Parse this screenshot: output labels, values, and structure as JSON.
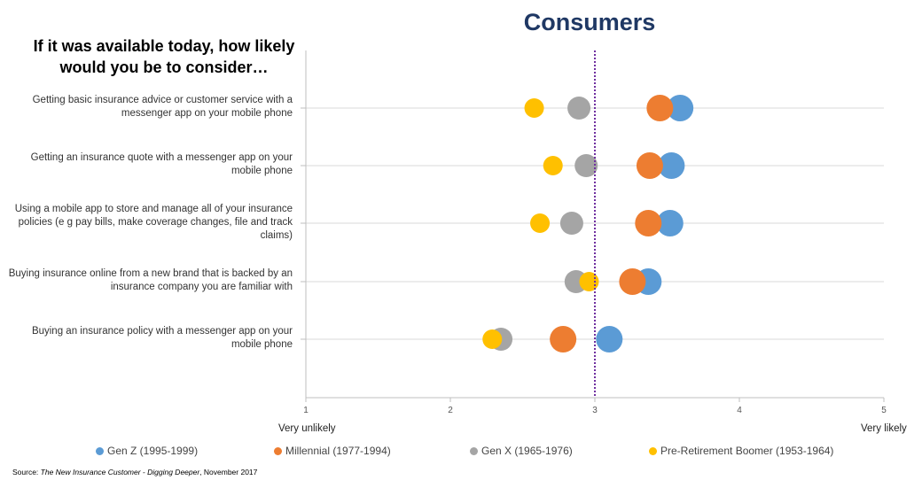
{
  "chart_data": {
    "type": "scatter",
    "title": "Consumers",
    "question": "If it was available today, how likely would you be to consider…",
    "xlim": [
      1,
      5
    ],
    "xticks": [
      "1",
      "2",
      "3",
      "4",
      "5"
    ],
    "x_min_label": "Very unlikely",
    "x_max_label": "Very likely",
    "reference_line_x": 3,
    "categories": [
      "Getting basic insurance advice or customer service with a messenger app on your mobile phone",
      "Getting an insurance quote with a messenger app on your mobile phone",
      "Using a mobile app to store and manage all of your insurance policies (e g  pay bills, make coverage changes, file and track claims)",
      "Buying insurance online from a new brand that is backed by an insurance company you are familiar with",
      "Buying an insurance policy with a messenger app on your mobile phone"
    ],
    "series": [
      {
        "name": "Gen Z (1995-1999)",
        "color": "#5b9bd5",
        "values": [
          3.59,
          3.53,
          3.52,
          3.37,
          3.1
        ]
      },
      {
        "name": "Millennial (1977-1994)",
        "color": "#ed7d31",
        "values": [
          3.45,
          3.38,
          3.37,
          3.26,
          2.78
        ]
      },
      {
        "name": "Gen X (1965-1976)",
        "color": "#a5a5a5",
        "values": [
          2.89,
          2.94,
          2.84,
          2.87,
          2.35
        ]
      },
      {
        "name": "Pre-Retirement Boomer (1953-1964)",
        "color": "#ffc000",
        "values": [
          2.58,
          2.71,
          2.62,
          2.96,
          2.29
        ]
      }
    ],
    "grid": true,
    "legend": "bottom"
  },
  "source": {
    "prefix": "Source: ",
    "title": "The New Insurance Customer - Digging Deeper",
    "suffix": ", November 2017"
  }
}
